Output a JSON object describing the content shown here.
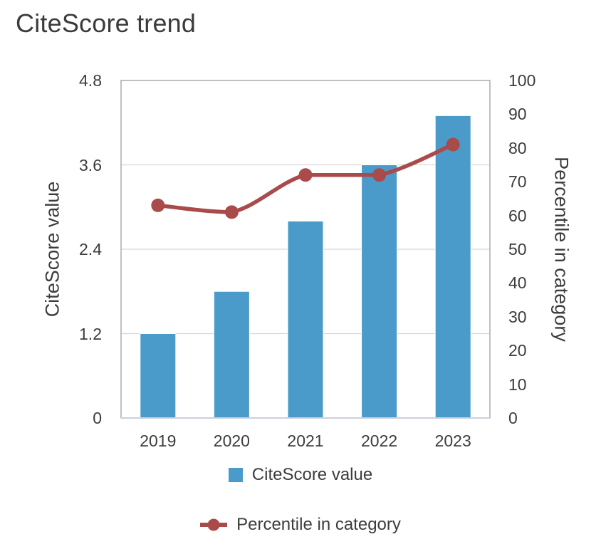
{
  "chart_data": {
    "type": "bar+line",
    "title": "CiteScore trend",
    "categories": [
      "2019",
      "2020",
      "2021",
      "2022",
      "2023"
    ],
    "series": [
      {
        "name": "CiteScore value",
        "type": "bar",
        "axis": "left",
        "color": "#4a9bc9",
        "values": [
          1.2,
          1.8,
          2.8,
          3.6,
          4.3
        ]
      },
      {
        "name": "Percentile in category",
        "type": "line",
        "axis": "right",
        "color": "#a94a4b",
        "values": [
          63,
          61,
          72,
          72,
          81
        ]
      }
    ],
    "left_axis": {
      "label": "CiteScore value",
      "min": 0,
      "max": 4.8,
      "ticks": [
        "0",
        "1.2",
        "2.4",
        "3.6",
        "4.8"
      ]
    },
    "right_axis": {
      "label": "Percentile in category",
      "min": 0,
      "max": 100,
      "ticks": [
        "0",
        "10",
        "20",
        "30",
        "40",
        "50",
        "60",
        "70",
        "80",
        "90",
        "100"
      ]
    },
    "grid": "horizontal gridlines at left-axis ticks",
    "legend_position": "bottom"
  },
  "colors": {
    "bar": "#4a9bc9",
    "line": "#a94a4b",
    "text": "#3c3c3c",
    "grid": "#d8d8d8",
    "plot_border": "#a6a6a6",
    "x_axis_line": "#ccd0dd",
    "background": "#ffffff"
  }
}
